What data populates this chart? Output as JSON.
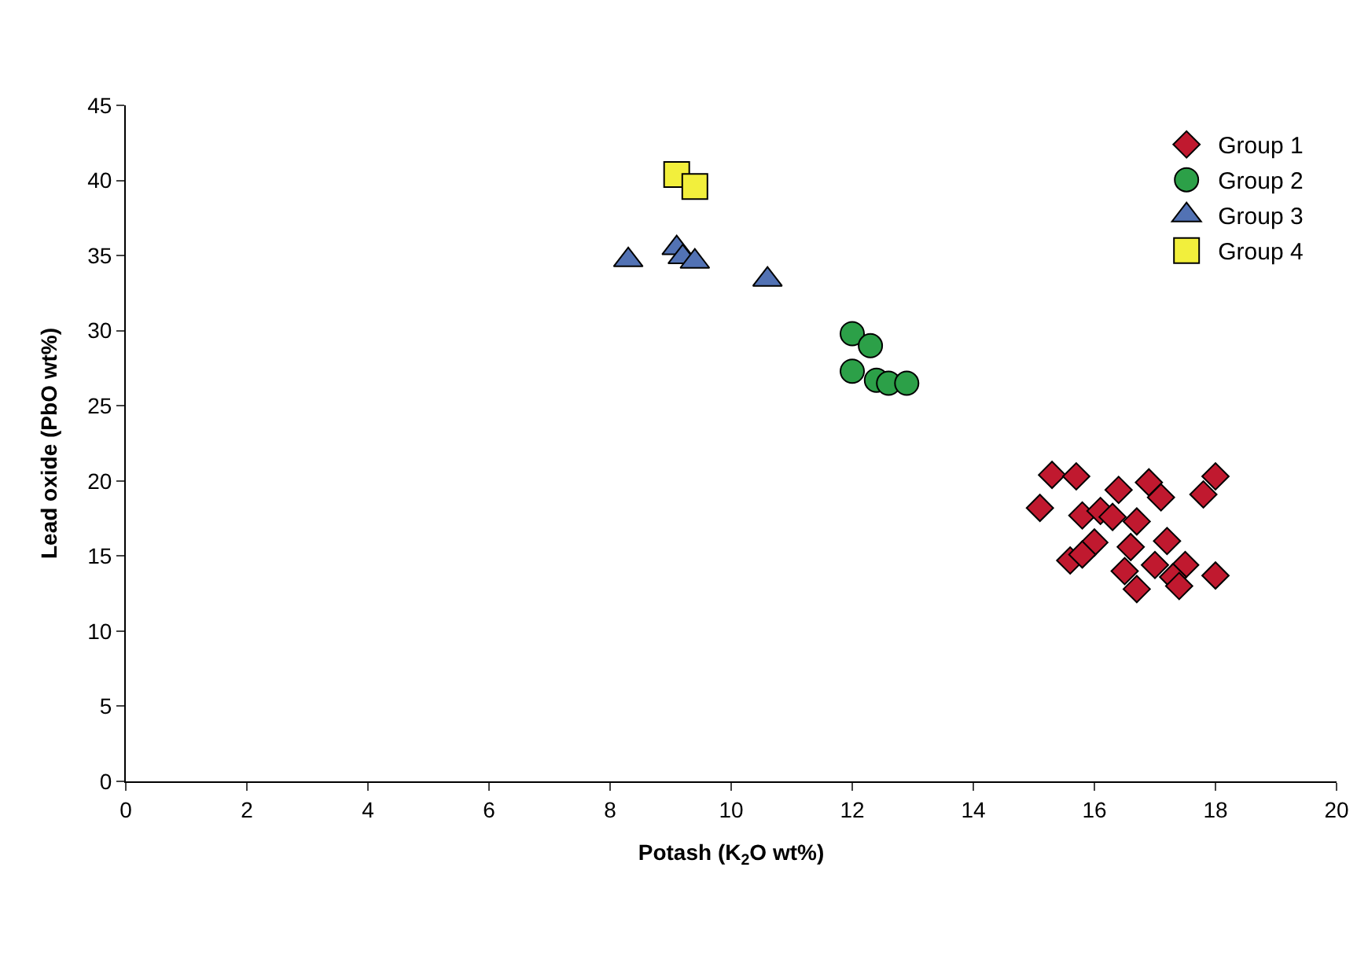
{
  "chart_data": {
    "type": "scatter",
    "xlabel": "Potash (K$_{2}$O wt%)",
    "ylabel": "Lead oxide (PbO wt%)",
    "xlim": [
      0,
      20
    ],
    "xticks": [
      0,
      2,
      4,
      6,
      8,
      10,
      12,
      14,
      16,
      18,
      20
    ],
    "ylim": [
      0,
      45
    ],
    "yticks": [
      0,
      5,
      10,
      15,
      20,
      25,
      30,
      35,
      40,
      45
    ],
    "legend": "top right",
    "series": [
      {
        "name": "Group 1",
        "color": "#c0192f",
        "marker": "diamond",
        "x": [
          15.3,
          15.7,
          15.1,
          15.8,
          16.4,
          16.9,
          17.1,
          18.0,
          17.8,
          16.1,
          16.3,
          16.7,
          17.2,
          16.0,
          15.6,
          15.8,
          16.6,
          16.5,
          17.0,
          16.7,
          17.5,
          17.3,
          17.4,
          18.0
        ],
        "values": [
          20.4,
          20.3,
          18.2,
          17.7,
          19.4,
          19.9,
          18.9,
          20.3,
          19.1,
          18.0,
          17.6,
          17.3,
          16.0,
          15.9,
          14.7,
          15.1,
          15.6,
          14.0,
          14.4,
          12.8,
          14.4,
          13.6,
          13.0,
          13.7
        ]
      },
      {
        "name": "Group 2",
        "color": "#2ca048",
        "marker": "circle",
        "x": [
          12.0,
          12.3,
          12.0,
          12.4,
          12.6,
          12.9
        ],
        "values": [
          29.8,
          29.0,
          27.3,
          26.7,
          26.5,
          26.5
        ]
      },
      {
        "name": "Group 3",
        "color": "#5272b4",
        "marker": "triangle",
        "x": [
          8.3,
          9.1,
          9.2,
          9.4,
          10.6
        ],
        "values": [
          34.7,
          35.5,
          34.9,
          34.6,
          33.4
        ]
      },
      {
        "name": "Group 4",
        "color": "#f2ef3c",
        "marker": "square",
        "x": [
          9.1,
          9.4
        ],
        "values": [
          40.4,
          39.6
        ]
      }
    ]
  }
}
